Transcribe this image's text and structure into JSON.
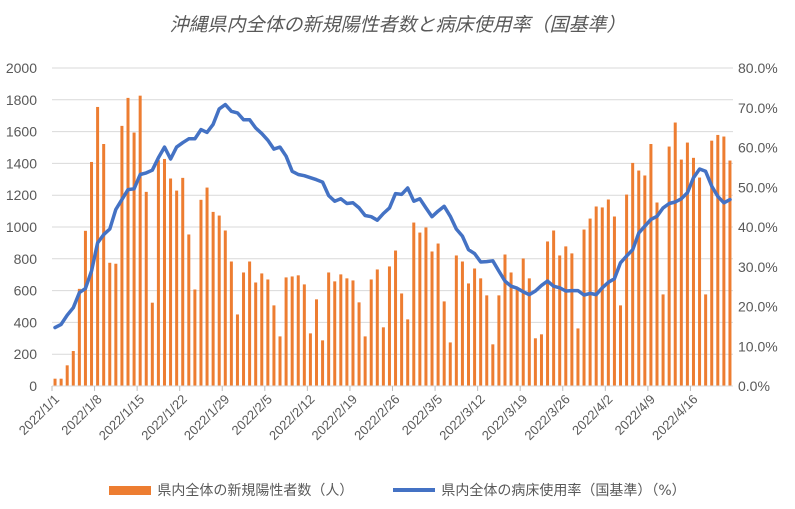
{
  "chart_data": {
    "type": "bar+line",
    "title": "沖縄県内全体の新規陽性者数と病床使用率（国基準）",
    "start_date": "2022/1/1",
    "x_tick_labels": [
      "2022/1/1",
      "2022/1/8",
      "2022/1/15",
      "2022/1/22",
      "2022/1/29",
      "2022/2/5",
      "2022/2/12",
      "2022/2/19",
      "2022/2/26",
      "2022/3/5",
      "2022/3/12",
      "2022/3/19",
      "2022/3/26",
      "2022/4/2",
      "2022/4/9",
      "2022/4/16"
    ],
    "y_left": {
      "ticks": [
        "0",
        "200",
        "400",
        "600",
        "800",
        "1000",
        "1200",
        "1400",
        "1600",
        "1800",
        "2000"
      ],
      "range": [
        0,
        2000
      ]
    },
    "y_right": {
      "ticks": [
        "0.0%",
        "10.0%",
        "20.0%",
        "30.0%",
        "40.0%",
        "50.0%",
        "60.0%",
        "70.0%",
        "80.0%"
      ],
      "range": [
        0,
        80
      ]
    },
    "grid": true,
    "legend_position": "bottom",
    "series": [
      {
        "name": "県内全体の新規陽性者数（人）",
        "type": "bar",
        "axis": "left",
        "color": "#ED7D31",
        "values": [
          46,
          46,
          130,
          220,
          611,
          976,
          1409,
          1755,
          1522,
          775,
          769,
          1636,
          1812,
          1594,
          1826,
          1221,
          524,
          1420,
          1428,
          1305,
          1229,
          1309,
          953,
          607,
          1171,
          1248,
          1095,
          1072,
          978,
          783,
          450,
          714,
          783,
          651,
          708,
          670,
          507,
          312,
          683,
          689,
          696,
          639,
          331,
          545,
          287,
          714,
          658,
          702,
          677,
          664,
          526,
          312,
          670,
          733,
          369,
          752,
          852,
          582,
          419,
          1028,
          965,
          997,
          846,
          896,
          532,
          274,
          821,
          783,
          645,
          739,
          677,
          570,
          262,
          570,
          827,
          714,
          607,
          802,
          677,
          300,
          325,
          909,
          978,
          821,
          878,
          834,
          362,
          984,
          1053,
          1129,
          1123,
          1173,
          1066,
          507,
          1204,
          1403,
          1355,
          1324,
          1522,
          1154,
          576,
          1506,
          1657,
          1424,
          1531,
          1435,
          1311,
          576,
          1543,
          1579,
          1569,
          1418
        ]
      },
      {
        "name": "県内全体の病床使用率（国基準）（%）",
        "type": "line",
        "axis": "right",
        "color": "#4472C4",
        "values": [
          14.7,
          15.5,
          17.8,
          19.7,
          23.5,
          24.5,
          28.9,
          36.0,
          38.1,
          39.5,
          44.4,
          46.9,
          49.4,
          49.6,
          53.2,
          53.6,
          54.3,
          57.4,
          60.1,
          57.1,
          60.1,
          61.2,
          62.2,
          62.2,
          64.5,
          63.8,
          65.8,
          69.7,
          70.8,
          69.1,
          68.7,
          67.0,
          67.0,
          64.9,
          63.5,
          61.8,
          59.6,
          60.1,
          57.8,
          54.0,
          53.2,
          52.9,
          52.4,
          51.9,
          51.3,
          47.9,
          46.5,
          47.1,
          45.9,
          46.1,
          44.8,
          42.9,
          42.6,
          41.7,
          43.4,
          44.8,
          48.4,
          48.2,
          49.8,
          46.5,
          47.1,
          44.8,
          42.6,
          44.0,
          45.2,
          42.7,
          39.5,
          37.7,
          34.3,
          33.3,
          31.2,
          31.3,
          31.5,
          28.9,
          26.4,
          25.1,
          24.6,
          23.7,
          23.0,
          23.9,
          25.3,
          26.4,
          25.1,
          24.7,
          23.9,
          24.0,
          24.0,
          22.9,
          23.3,
          23.0,
          24.7,
          26.1,
          27.0,
          31.0,
          32.7,
          34.3,
          38.5,
          40.2,
          41.9,
          42.7,
          44.8,
          45.9,
          46.3,
          47.1,
          48.6,
          52.4,
          54.6,
          54.0,
          50.3,
          47.7,
          46.1,
          46.9
        ]
      }
    ]
  }
}
